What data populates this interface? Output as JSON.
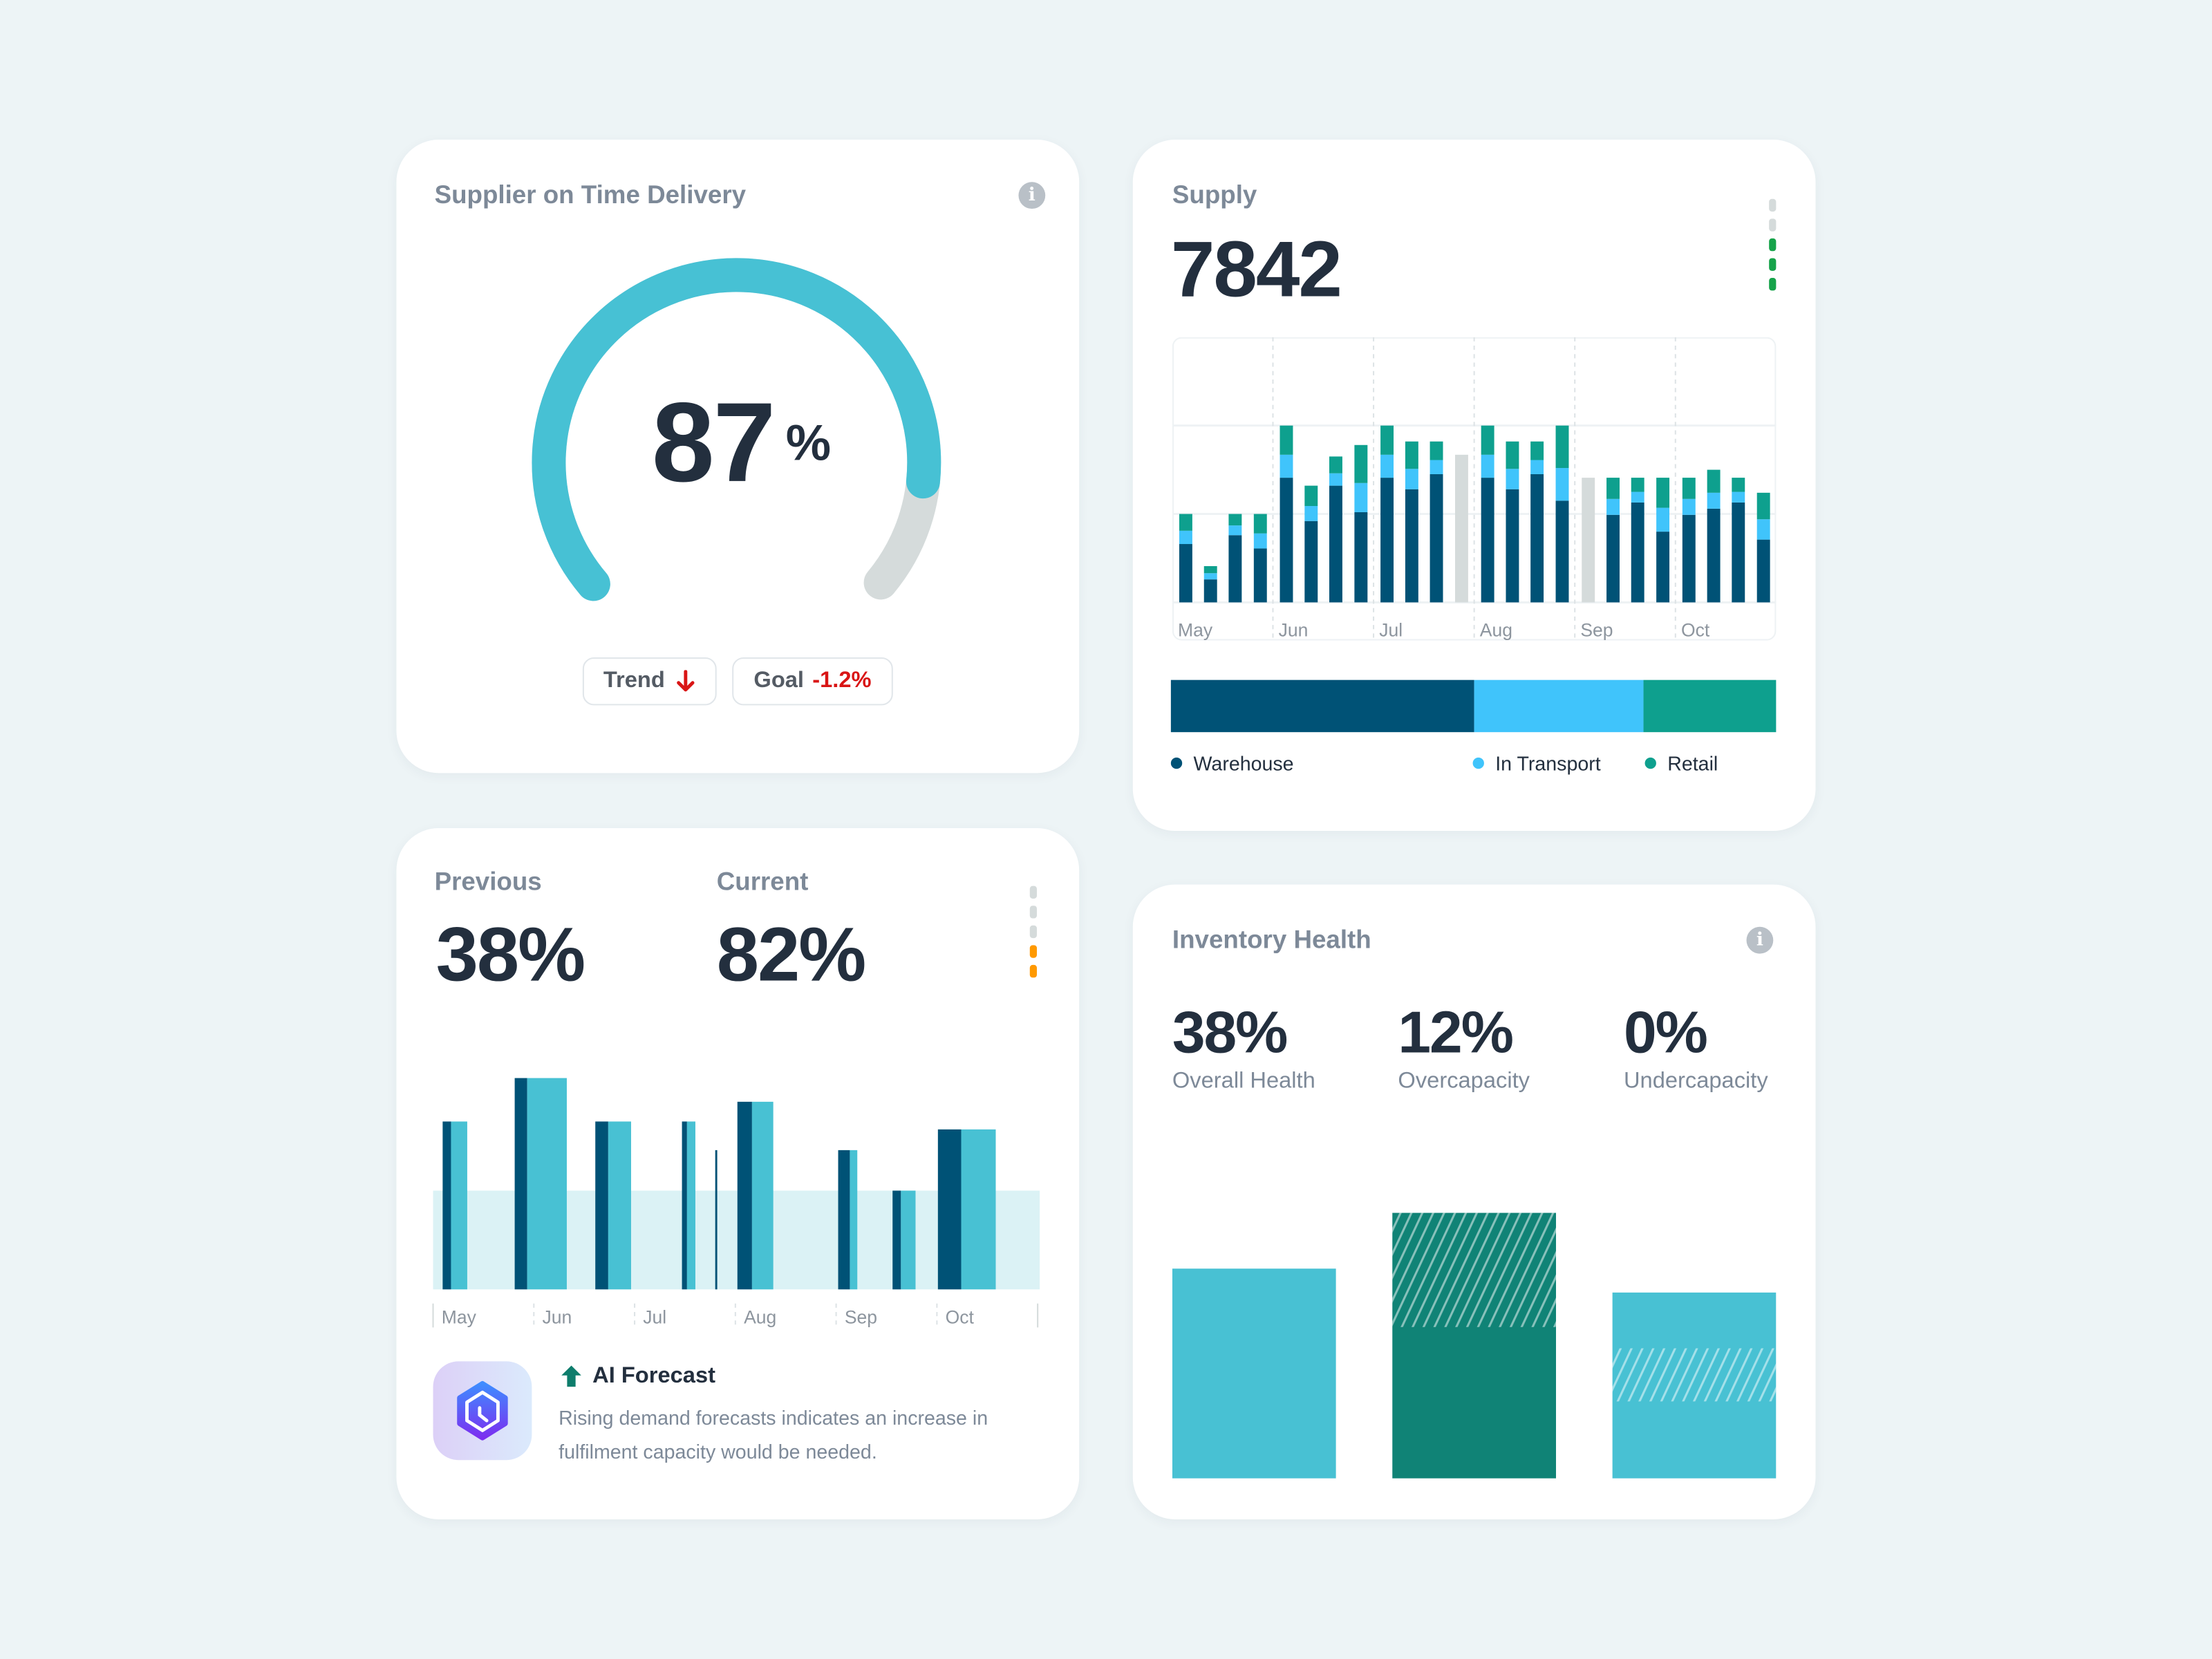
{
  "colors": {
    "background": "#edf4f6",
    "gauge": "#47c1d4",
    "gauge_track": "#d5dbdb",
    "warehouse": "#005276",
    "in_transport": "#40c4fb",
    "retail": "#0ea08e",
    "pending": "#d5dbdb",
    "previous": "#005276",
    "current": "#48c1d3",
    "band": "#dbf2f5",
    "negative": "#d91515",
    "positive_indicator": "#16a34a",
    "warning_indicator": "#ff9900",
    "inventory_teal": "#48c1d3",
    "inventory_green": "#108376"
  },
  "delivery_card": {
    "title": "Supplier on Time Delivery",
    "info_icon": "info-icon",
    "gauge_value": "87",
    "gauge_unit": "%",
    "gauge_fraction": 0.87,
    "trend_label": "Trend",
    "trend_icon": "arrow-down-icon",
    "goal_label": "Goal",
    "goal_value": "-1.2%"
  },
  "supply_card": {
    "title": "Supply",
    "value": "7842",
    "indicator": {
      "segments": 5,
      "active": 3,
      "color": "#16a34a"
    },
    "legend": [
      {
        "label": "Warehouse",
        "color": "#005276"
      },
      {
        "label": "In Transport",
        "color": "#40c4fb"
      },
      {
        "label": "Retail",
        "color": "#0ea08e"
      }
    ],
    "share": {
      "Warehouse": 0.5,
      "In Transport": 0.28,
      "Retail": 0.22
    }
  },
  "comparison_card": {
    "previous_label": "Previous",
    "previous_value": "38%",
    "current_label": "Current",
    "current_value": "82%",
    "indicator": {
      "segments": 5,
      "active": 2,
      "color": "#ff9900"
    },
    "forecast_title": "AI Forecast",
    "forecast_icon": "arrow-up-icon",
    "forecast_text": "Rising demand forecasts indicates an increase in fulfilment capacity would be needed."
  },
  "inventory_card": {
    "title": "Inventory Health",
    "info_icon": "info-icon",
    "stats": [
      {
        "value": "38%",
        "label": "Overall Health"
      },
      {
        "value": "12%",
        "label": "Overcapacity"
      },
      {
        "value": "0%",
        "label": "Undercapacity"
      }
    ]
  },
  "chart_data": [
    {
      "type": "bar",
      "stacked": true,
      "months": [
        "May",
        "Jun",
        "Jul",
        "Aug",
        "Sep",
        "Oct"
      ],
      "bars_per_month": 4,
      "ylim": [
        0,
        3
      ],
      "grid": true,
      "series": [
        {
          "name": "Warehouse",
          "color": "#005276",
          "values": [
            0.66,
            0.26,
            0.76,
            0.61,
            1.41,
            0.92,
            1.32,
            1.02,
            1.41,
            1.28,
            1.45,
            null,
            1.41,
            1.28,
            1.45,
            1.15,
            null,
            0.99,
            1.13,
            0.8,
            0.99,
            1.06,
            1.13,
            0.71
          ]
        },
        {
          "name": "In Transport",
          "color": "#40c4fb",
          "values": [
            0.15,
            0.07,
            0.11,
            0.17,
            0.26,
            0.17,
            0.14,
            0.33,
            0.26,
            0.23,
            0.16,
            null,
            0.26,
            0.23,
            0.16,
            0.37,
            null,
            0.18,
            0.12,
            0.27,
            0.18,
            0.18,
            0.12,
            0.23
          ]
        },
        {
          "name": "Retail",
          "color": "#0ea08e",
          "values": [
            0.19,
            0.08,
            0.13,
            0.22,
            0.33,
            0.23,
            0.19,
            0.43,
            0.33,
            0.31,
            0.21,
            null,
            0.33,
            0.31,
            0.21,
            0.48,
            null,
            0.24,
            0.16,
            0.34,
            0.24,
            0.26,
            0.16,
            0.3
          ]
        },
        {
          "color": "#d5dbdb",
          "values": [
            null,
            null,
            null,
            null,
            null,
            null,
            null,
            null,
            null,
            null,
            null,
            1.67,
            null,
            null,
            null,
            null,
            1.41,
            null,
            null,
            null,
            null,
            null,
            null,
            null
          ]
        }
      ]
    },
    {
      "type": "bar",
      "months": [
        "May",
        "Jun",
        "Jul",
        "Aug",
        "Sep",
        "Oct"
      ],
      "threshold": 1.0,
      "ylim": [
        0,
        2.3
      ],
      "bars": [
        {
          "x": 0.095,
          "value": 1.7,
          "previous_span": 0.083,
          "current_span": 0.161
        },
        {
          "x": 0.81,
          "value": 2.14,
          "previous_span": 0.124,
          "current_span": 0.393
        },
        {
          "x": 1.61,
          "value": 1.7,
          "previous_span": 0.128,
          "current_span": 0.227
        },
        {
          "x": 2.47,
          "value": 1.7,
          "previous_span": 0.05,
          "current_span": 0.083
        },
        {
          "x": 2.8,
          "value": 1.41,
          "previous_span": 0.02,
          "current_span": 0
        },
        {
          "x": 3.02,
          "value": 1.9,
          "previous_span": 0.145,
          "current_span": 0.211
        },
        {
          "x": 4.02,
          "value": 1.41,
          "previous_span": 0.116,
          "current_span": 0.074
        },
        {
          "x": 4.56,
          "value": 1.0,
          "previous_span": 0.083,
          "current_span": 0.145
        },
        {
          "x": 5.01,
          "value": 1.62,
          "previous_span": 0.231,
          "current_span": 0.343
        }
      ]
    },
    {
      "type": "bar",
      "categories": [
        "Overall Health",
        "Overcapacity",
        "Undercapacity"
      ],
      "ylim": [
        0,
        1
      ],
      "values": [
        0.79,
        1.0,
        0.7
      ],
      "colors": [
        "#48c1d3",
        "#108376",
        "#48c1d3"
      ],
      "hatched_ranges": [
        null,
        [
          0.57,
          1.0
        ],
        [
          0.29,
          0.49
        ]
      ]
    }
  ]
}
